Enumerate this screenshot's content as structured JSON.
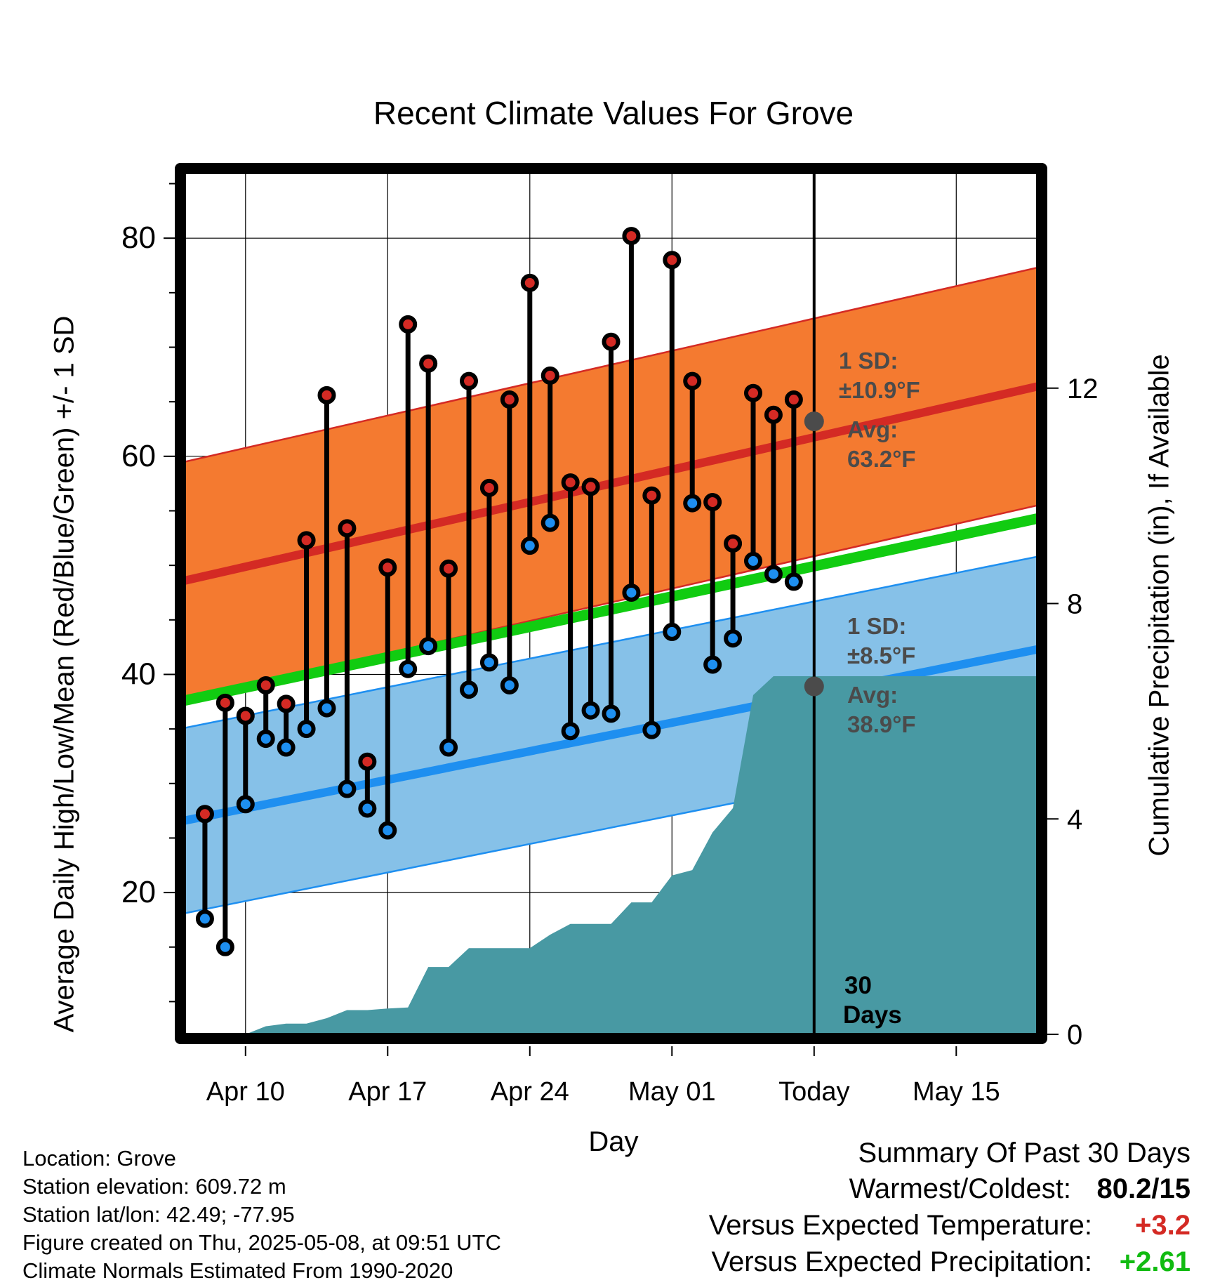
{
  "title": "Recent Climate Values For Grove",
  "xlabel": "Day",
  "ylabel_left": "Average Daily High/Low/Mean (Red/Blue/Green) +/- 1 SD",
  "ylabel_right": "Cumulative Precipitation (in), If Available",
  "x_ticks": [
    "Apr 10",
    "Apr 17",
    "Apr 24",
    "May 01",
    "Today",
    "May 15"
  ],
  "y_ticks_left": [
    "20",
    "40",
    "60",
    "80"
  ],
  "y_ticks_right": [
    "0",
    "4",
    "8",
    "12"
  ],
  "annotations": {
    "high_sd_title": "1 SD:",
    "high_sd_value": "±10.9°F",
    "high_avg_title": "Avg:",
    "high_avg_value": "63.2°F",
    "low_sd_title": "1 SD:",
    "low_sd_value": "±8.5°F",
    "low_avg_title": "Avg:",
    "low_avg_value": "38.9°F",
    "days_line1": "30",
    "days_line2": "Days"
  },
  "meta": {
    "location": "Location: Grove",
    "elevation": "Station elevation: 609.72 m",
    "latlon": "Station lat/lon: 42.49; -77.95",
    "created": "Figure created on Thu, 2025-05-08, at 09:51 UTC",
    "normals": "Climate Normals Estimated From 1990-2020"
  },
  "summary": {
    "heading": "Summary Of Past 30 Days",
    "warm_cold_label": "Warmest/Coldest:",
    "warm_cold_value": "80.2/15",
    "temp_label": "Versus Expected Temperature:",
    "temp_value": "+3.2",
    "precip_label": "Versus Expected Precipitation:",
    "precip_value": "+2.61"
  },
  "colors": {
    "high_band": "#f47a30",
    "high_line": "#d42a24",
    "low_band": "#86c1e8",
    "low_line": "#1e8ff0",
    "mean_line": "#11cc11",
    "precip": "#4899a3",
    "marker_high": "#d42a24",
    "marker_low": "#1e8ff0",
    "summary_positive_temp": "#d42a24",
    "summary_positive_precip": "#11bb11"
  },
  "chart_data": {
    "type": "line",
    "x_start_date": "2025-04-08",
    "xlim": [
      "2025-04-07",
      "2025-05-19"
    ],
    "today": "2025-05-08",
    "ylim_left": [
      7,
      86
    ],
    "ylim_right": [
      0,
      16
    ],
    "observed": {
      "dates": [
        "2025-04-08",
        "2025-04-09",
        "2025-04-10",
        "2025-04-11",
        "2025-04-12",
        "2025-04-13",
        "2025-04-14",
        "2025-04-15",
        "2025-04-16",
        "2025-04-17",
        "2025-04-18",
        "2025-04-19",
        "2025-04-20",
        "2025-04-21",
        "2025-04-22",
        "2025-04-23",
        "2025-04-24",
        "2025-04-25",
        "2025-04-26",
        "2025-04-27",
        "2025-04-28",
        "2025-04-29",
        "2025-04-30",
        "2025-05-01",
        "2025-05-02",
        "2025-05-03",
        "2025-05-04",
        "2025-05-05",
        "2025-05-06",
        "2025-05-07"
      ],
      "highs": [
        27.2,
        37.4,
        36.2,
        39.0,
        37.3,
        52.3,
        65.6,
        53.4,
        32.0,
        49.8,
        72.1,
        68.5,
        49.7,
        66.9,
        57.1,
        65.2,
        75.9,
        67.4,
        57.6,
        57.2,
        70.5,
        80.2,
        56.4,
        78.0,
        66.9,
        55.8,
        52.0,
        65.8,
        63.8,
        65.2
      ],
      "lows": [
        17.6,
        15.0,
        28.1,
        34.1,
        33.3,
        35.0,
        36.9,
        29.5,
        27.7,
        25.7,
        40.5,
        42.6,
        33.3,
        38.6,
        41.1,
        39.0,
        51.8,
        53.9,
        34.8,
        36.7,
        36.4,
        47.5,
        34.9,
        43.9,
        55.7,
        40.9,
        43.3,
        50.4,
        49.2,
        48.5
      ]
    },
    "normals": {
      "dates": [
        "2025-04-07",
        "2025-05-19"
      ],
      "high_mean": [
        48.6,
        66.4
      ],
      "high_sd": 10.9,
      "low_mean": [
        26.6,
        42.3
      ],
      "low_sd": 8.5,
      "mean": [
        37.6,
        54.3
      ]
    },
    "today_high_avg": 63.2,
    "today_low_avg": 38.9,
    "precip_cumulative": {
      "dates": [
        "2025-04-07",
        "2025-04-10",
        "2025-04-11",
        "2025-04-12",
        "2025-04-13",
        "2025-04-14",
        "2025-04-15",
        "2025-04-16",
        "2025-04-17",
        "2025-04-18",
        "2025-04-19",
        "2025-04-20",
        "2025-04-21",
        "2025-04-22",
        "2025-04-23",
        "2025-04-24",
        "2025-04-25",
        "2025-04-26",
        "2025-04-27",
        "2025-04-28",
        "2025-04-29",
        "2025-04-30",
        "2025-05-01",
        "2025-05-02",
        "2025-05-03",
        "2025-05-04",
        "2025-05-05",
        "2025-05-06",
        "2025-05-07",
        "2025-05-08",
        "2025-05-19"
      ],
      "values": [
        0,
        0,
        0.15,
        0.2,
        0.2,
        0.3,
        0.45,
        0.45,
        0.48,
        0.5,
        1.25,
        1.25,
        1.6,
        1.6,
        1.6,
        1.6,
        1.85,
        2.05,
        2.05,
        2.05,
        2.45,
        2.45,
        2.95,
        3.05,
        3.75,
        4.2,
        6.3,
        6.65,
        6.65,
        6.65,
        6.65
      ]
    }
  }
}
